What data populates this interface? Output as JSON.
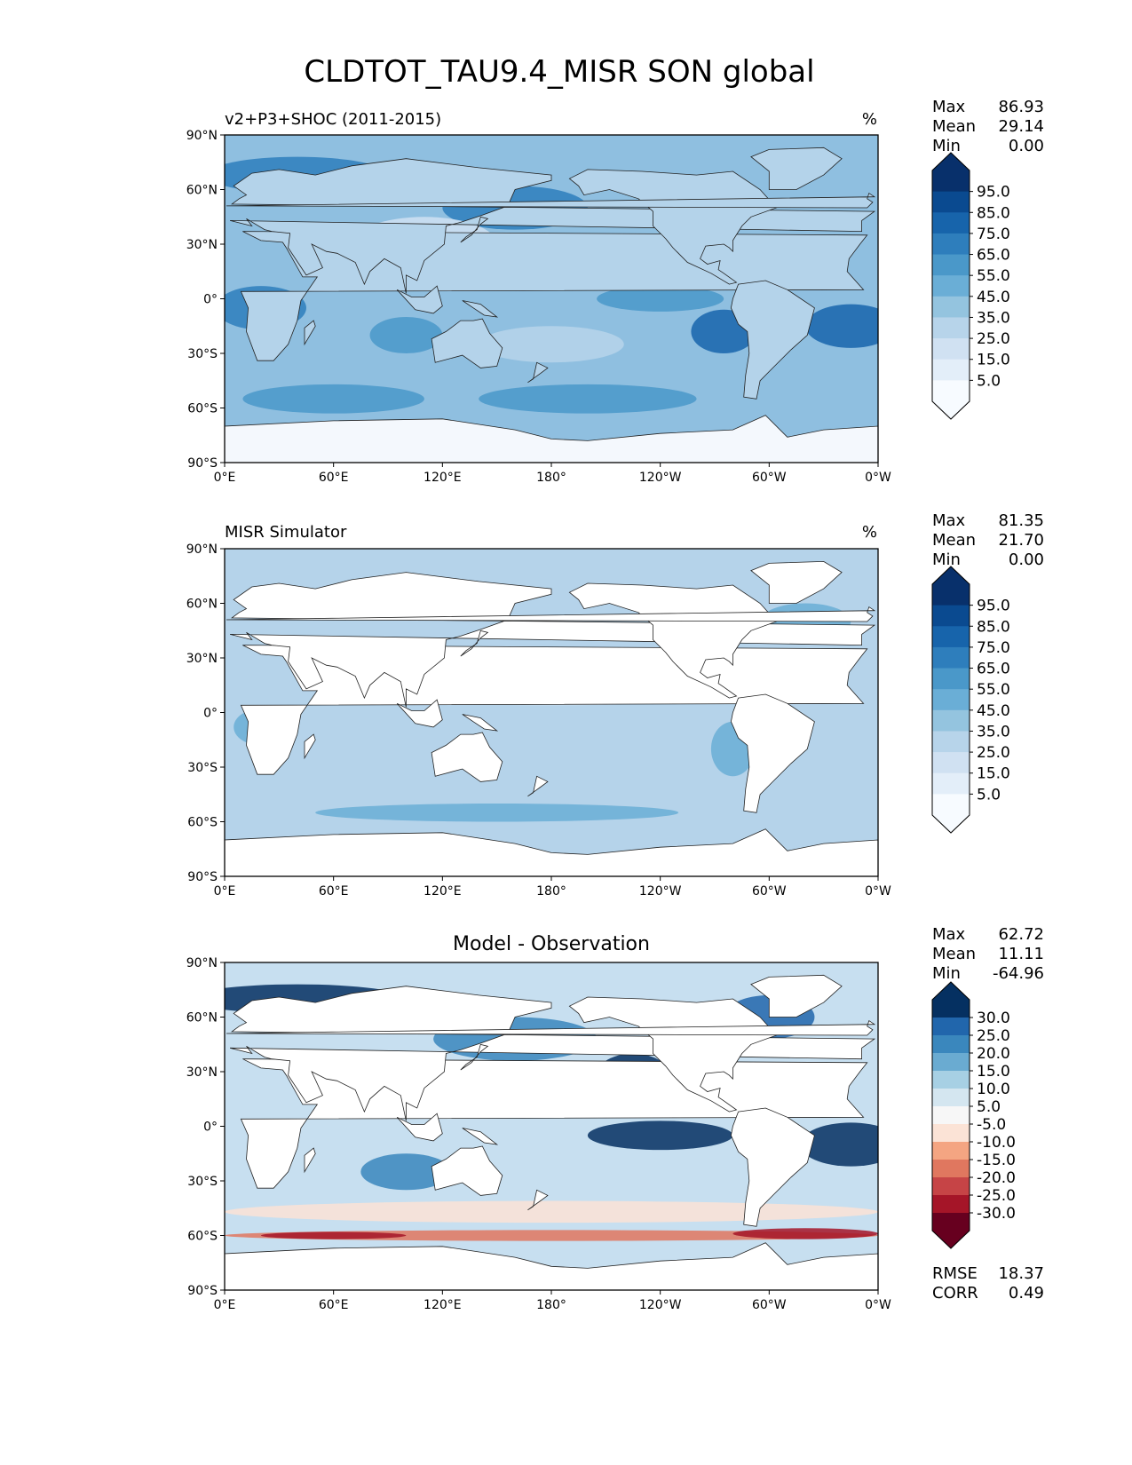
{
  "figure": {
    "suptitle": "CLDTOT_TAU9.4_MISR SON global"
  },
  "panels": [
    {
      "id": "model",
      "title_left": "v2+P3+SHOC (2011-2015)",
      "title_center": "",
      "units": "%",
      "stats": [
        {
          "label": "Max",
          "value": "86.93"
        },
        {
          "label": "Mean",
          "value": "29.14"
        },
        {
          "label": "Min",
          "value": "0.00"
        }
      ],
      "extra_stats": [],
      "colorbar": {
        "labels": [
          "95.0",
          "85.0",
          "75.0",
          "65.0",
          "55.0",
          "45.0",
          "35.0",
          "25.0",
          "15.0",
          "5.0"
        ],
        "colors": [
          "#08306b",
          "#0a4a90",
          "#1764ab",
          "#2e7ebc",
          "#4a98c9",
          "#6aaed6",
          "#94c4df",
          "#b7d4ea",
          "#d0e1f2",
          "#e3eef9",
          "#f7fbff"
        ]
      },
      "ocean_color": "#8fbfe0",
      "land_color": "#b4d3ea",
      "antarctica_color": "#f4f8fd"
    },
    {
      "id": "obs",
      "title_left": "MISR Simulator",
      "title_center": "",
      "units": "%",
      "stats": [
        {
          "label": "Max",
          "value": "81.35"
        },
        {
          "label": "Mean",
          "value": "21.70"
        },
        {
          "label": "Min",
          "value": "0.00"
        }
      ],
      "extra_stats": [],
      "colorbar": {
        "labels": [
          "95.0",
          "85.0",
          "75.0",
          "65.0",
          "55.0",
          "45.0",
          "35.0",
          "25.0",
          "15.0",
          "5.0"
        ],
        "colors": [
          "#08306b",
          "#0a4a90",
          "#1764ab",
          "#2e7ebc",
          "#4a98c9",
          "#6aaed6",
          "#94c4df",
          "#b7d4ea",
          "#d0e1f2",
          "#e3eef9",
          "#f7fbff"
        ]
      },
      "ocean_color": "#b5d3ea",
      "land_color": "#ffffff",
      "antarctica_color": "#ffffff"
    },
    {
      "id": "diff",
      "title_left": "",
      "title_center": "Model - Observation",
      "units": "",
      "stats": [
        {
          "label": "Max",
          "value": "62.72"
        },
        {
          "label": "Mean",
          "value": "11.11"
        },
        {
          "label": "Min",
          "value": "-64.96"
        }
      ],
      "extra_stats": [
        {
          "label": "RMSE",
          "value": "18.37"
        },
        {
          "label": "CORR",
          "value": "0.49"
        }
      ],
      "colorbar": {
        "labels": [
          "30.0",
          "25.0",
          "20.0",
          "15.0",
          "10.0",
          "5.0",
          "-5.0",
          "-10.0",
          "-15.0",
          "-20.0",
          "-25.0",
          "-30.0"
        ],
        "colors": [
          "#053061",
          "#2166ac",
          "#3a87bd",
          "#6aabd1",
          "#a7d0e4",
          "#d4e6f0",
          "#f7f7f7",
          "#fbe3d6",
          "#f4a582",
          "#e0775f",
          "#c64446",
          "#a51528",
          "#67001f"
        ]
      },
      "ocean_color": "#c7dff0",
      "land_color": "#ffffff",
      "antarctica_color": "#ffffff"
    }
  ],
  "chart_data": [
    {
      "type": "heatmap",
      "title": "v2+P3+SHOC (2011-2015)",
      "units": "%",
      "variable": "CLDTOT_TAU9.4_MISR",
      "season": "SON",
      "x_ticks": [
        "0°E",
        "60°E",
        "120°E",
        "180°",
        "120°W",
        "60°W",
        "0°W"
      ],
      "y_ticks": [
        "90°N",
        "60°N",
        "30°N",
        "0°",
        "30°S",
        "60°S",
        "90°S"
      ],
      "xlim": [
        0,
        360
      ],
      "ylim": [
        -90,
        90
      ],
      "contour_levels": [
        5,
        15,
        25,
        35,
        45,
        55,
        65,
        75,
        85,
        95
      ],
      "max": 86.93,
      "mean": 29.14,
      "min": 0.0
    },
    {
      "type": "heatmap",
      "title": "MISR Simulator",
      "units": "%",
      "x_ticks": [
        "0°E",
        "60°E",
        "120°E",
        "180°",
        "120°W",
        "60°W",
        "0°W"
      ],
      "y_ticks": [
        "90°N",
        "60°N",
        "30°N",
        "0°",
        "30°S",
        "60°S",
        "90°S"
      ],
      "xlim": [
        0,
        360
      ],
      "ylim": [
        -90,
        90
      ],
      "contour_levels": [
        5,
        15,
        25,
        35,
        45,
        55,
        65,
        75,
        85,
        95
      ],
      "max": 81.35,
      "mean": 21.7,
      "min": 0.0
    },
    {
      "type": "heatmap",
      "title": "Model - Observation",
      "x_ticks": [
        "0°E",
        "60°E",
        "120°E",
        "180°",
        "120°W",
        "60°W",
        "0°W"
      ],
      "y_ticks": [
        "90°N",
        "60°N",
        "30°N",
        "0°",
        "30°S",
        "60°S",
        "90°S"
      ],
      "xlim": [
        0,
        360
      ],
      "ylim": [
        -90,
        90
      ],
      "contour_levels": [
        -30,
        -25,
        -20,
        -15,
        -10,
        -5,
        5,
        10,
        15,
        20,
        25,
        30
      ],
      "max": 62.72,
      "mean": 11.11,
      "min": -64.96,
      "rmse": 18.37,
      "corr": 0.49
    }
  ],
  "axis": {
    "x_ticks": [
      "0°E",
      "60°E",
      "120°E",
      "180°",
      "120°W",
      "60°W",
      "0°W"
    ],
    "x_values": [
      0,
      60,
      120,
      180,
      240,
      300,
      360
    ],
    "y_ticks": [
      "90°N",
      "60°N",
      "30°N",
      "0°",
      "30°S",
      "60°S",
      "90°S"
    ],
    "y_values": [
      90,
      60,
      30,
      0,
      -30,
      -60,
      -90
    ]
  },
  "blobs": {
    "model": [
      {
        "lon": 20,
        "lat": -5,
        "rx": 25,
        "ry": 12,
        "color": "#2e7ebc"
      },
      {
        "lon": 345,
        "lat": -15,
        "rx": 25,
        "ry": 12,
        "color": "#1764ab"
      },
      {
        "lon": 275,
        "lat": -18,
        "rx": 18,
        "ry": 12,
        "color": "#1764ab"
      },
      {
        "lon": 225,
        "lat": 25,
        "rx": 18,
        "ry": 10,
        "color": "#1764ab"
      },
      {
        "lon": 160,
        "lat": 50,
        "rx": 40,
        "ry": 12,
        "color": "#2e7ebc"
      },
      {
        "lon": 40,
        "lat": 68,
        "rx": 50,
        "ry": 10,
        "color": "#2e7ebc"
      },
      {
        "lon": 240,
        "lat": 0,
        "rx": 35,
        "ry": 7,
        "color": "#4a98c9"
      },
      {
        "lon": 100,
        "lat": -20,
        "rx": 20,
        "ry": 10,
        "color": "#4a98c9"
      },
      {
        "lon": 200,
        "lat": -55,
        "rx": 60,
        "ry": 8,
        "color": "#4a98c9"
      },
      {
        "lon": 60,
        "lat": -55,
        "rx": 50,
        "ry": 8,
        "color": "#4a98c9"
      },
      {
        "lon": 110,
        "lat": 30,
        "rx": 40,
        "ry": 15,
        "color": "#d0e1f2"
      },
      {
        "lon": 180,
        "lat": -25,
        "rx": 40,
        "ry": 10,
        "color": "#b7d4ea"
      }
    ],
    "obs": [
      {
        "lon": 20,
        "lat": -8,
        "rx": 15,
        "ry": 10,
        "color": "#6aaed6"
      },
      {
        "lon": 280,
        "lat": -20,
        "rx": 12,
        "ry": 15,
        "color": "#6aaed6"
      },
      {
        "lon": 180,
        "lat": 8,
        "rx": 90,
        "ry": 4,
        "color": "#e3eef9"
      },
      {
        "lon": 150,
        "lat": -55,
        "rx": 100,
        "ry": 5,
        "color": "#6aaed6"
      },
      {
        "lon": 320,
        "lat": 50,
        "rx": 25,
        "ry": 10,
        "color": "#6aaed6"
      }
    ],
    "diff": [
      {
        "lon": 225,
        "lat": 25,
        "rx": 22,
        "ry": 15,
        "color": "#053061"
      },
      {
        "lon": 240,
        "lat": -5,
        "rx": 40,
        "ry": 8,
        "color": "#053061"
      },
      {
        "lon": 345,
        "lat": -10,
        "rx": 28,
        "ry": 12,
        "color": "#053061"
      },
      {
        "lon": 40,
        "lat": 70,
        "rx": 60,
        "ry": 8,
        "color": "#053061"
      },
      {
        "lon": 300,
        "lat": 60,
        "rx": 25,
        "ry": 12,
        "color": "#2166ac"
      },
      {
        "lon": 160,
        "lat": 48,
        "rx": 45,
        "ry": 12,
        "color": "#3a87bd"
      },
      {
        "lon": 100,
        "lat": -25,
        "rx": 25,
        "ry": 10,
        "color": "#3a87bd"
      },
      {
        "lon": 180,
        "lat": -60,
        "rx": 180,
        "ry": 3,
        "color": "#e0775f"
      },
      {
        "lon": 60,
        "lat": -60,
        "rx": 40,
        "ry": 2,
        "color": "#a51528"
      },
      {
        "lon": 320,
        "lat": -59,
        "rx": 40,
        "ry": 3,
        "color": "#a51528"
      },
      {
        "lon": 180,
        "lat": -47,
        "rx": 180,
        "ry": 6,
        "color": "#fbe3d6"
      }
    ]
  }
}
